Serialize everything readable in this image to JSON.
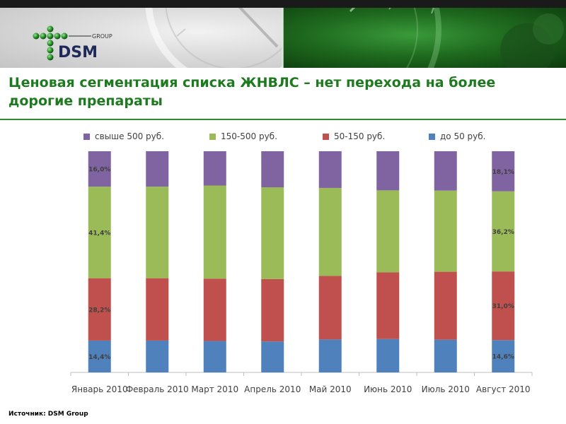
{
  "header": {
    "title": "Ценовая сегментация списка ЖНВЛС – нет перехода на более дорогие препараты",
    "logo_text": "DSM",
    "logo_subtext": "GROUP"
  },
  "footer": {
    "source": "Источник: DSM Group"
  },
  "colors": {
    "brand_green": "#1e7a1e",
    "seg_do50": "#4f81bd",
    "seg_50_150": "#c0504d",
    "seg_150_500": "#9bbb59",
    "seg_500plus": "#8064a2"
  },
  "chart_data": {
    "type": "bar",
    "stacked": true,
    "percent": true,
    "categories": [
      "Январь 2010",
      "Февраль 2010",
      "Март 2010",
      "Апрель 2010",
      "Май 2010",
      "Июнь 2010",
      "Июль 2010",
      "Август 2010"
    ],
    "series": [
      {
        "name": "до 50 руб.",
        "color": "#4f81bd",
        "values": [
          14.4,
          14.4,
          14.2,
          14.0,
          14.9,
          15.1,
          14.8,
          14.6
        ]
      },
      {
        "name": "50-150 руб.",
        "color": "#c0504d",
        "values": [
          28.2,
          28.2,
          28.2,
          28.2,
          28.7,
          30.2,
          30.7,
          31.0
        ]
      },
      {
        "name": "150-500 руб.",
        "color": "#9bbb59",
        "values": [
          41.4,
          41.4,
          42.1,
          41.5,
          39.8,
          37.0,
          36.7,
          36.2
        ]
      },
      {
        "name": "свыше 500 руб.",
        "color": "#8064a2",
        "values": [
          16.0,
          16.0,
          15.5,
          16.3,
          16.6,
          17.7,
          17.8,
          18.1
        ]
      }
    ],
    "labeled_values": [
      {
        "category": "Январь 2010",
        "series": "до 50 руб.",
        "text": "14,4%"
      },
      {
        "category": "Январь 2010",
        "series": "50-150 руб.",
        "text": "28,2%"
      },
      {
        "category": "Январь 2010",
        "series": "150-500 руб.",
        "text": "41,4%"
      },
      {
        "category": "Январь 2010",
        "series": "свыше 500 руб.",
        "text": "16,0%"
      },
      {
        "category": "Август 2010",
        "series": "до 50 руб.",
        "text": "14,6%"
      },
      {
        "category": "Август 2010",
        "series": "50-150 руб.",
        "text": "31,0%"
      },
      {
        "category": "Август 2010",
        "series": "150-500 руб.",
        "text": "36,2%"
      },
      {
        "category": "Август 2010",
        "series": "свыше 500 руб.",
        "text": "18,1%"
      }
    ],
    "legend_order": [
      "свыше 500 руб.",
      "150-500 руб.",
      "50-150 руб.",
      "до 50 руб."
    ],
    "legend_position": "top",
    "ylim": [
      0,
      100
    ],
    "grid": false,
    "title": "",
    "xlabel": "",
    "ylabel": ""
  }
}
